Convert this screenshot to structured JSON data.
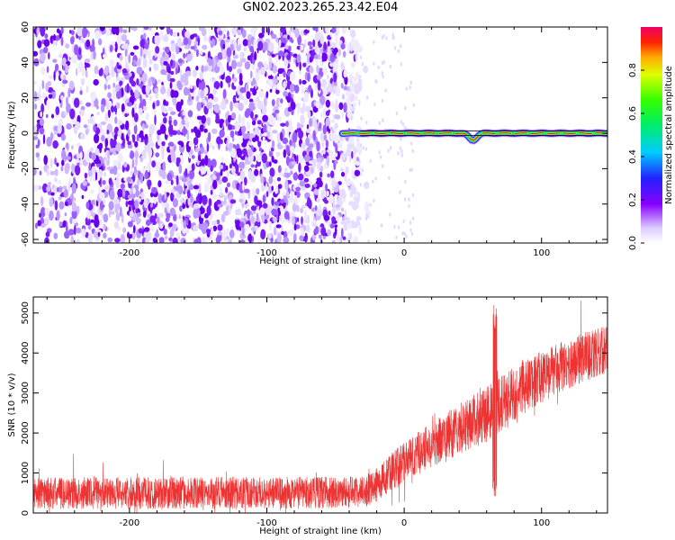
{
  "title": "GN02.2023.265.23.42.E04",
  "chart_data": [
    {
      "type": "heatmap",
      "xlabel": "Height of straight line (km)",
      "ylabel": "Frequency (Hz)",
      "xlim": [
        -270,
        148
      ],
      "ylim": [
        -62,
        60
      ],
      "xticks": [
        -200,
        -100,
        0,
        100
      ],
      "yticks": [
        -60,
        -40,
        -20,
        0,
        20,
        40,
        60
      ],
      "noise_region_x": [
        -270,
        -32
      ],
      "signal_band": {
        "frequency_hz": 0,
        "x_range": [
          -45,
          148
        ],
        "peak_amplitude": 0.9,
        "notch": {
          "x": 50,
          "frequency_hz": -4
        }
      },
      "colorbar": {
        "label": "Normalized spectral amplitude",
        "ticks": [
          0.0,
          0.2,
          0.4,
          0.6,
          0.8
        ],
        "range": [
          0,
          1
        ]
      }
    },
    {
      "type": "line",
      "xlabel": "Height of straight line (km)",
      "ylabel": "SNR (10 * v/v)",
      "xlim": [
        -270,
        148
      ],
      "ylim": [
        0,
        5400
      ],
      "xticks": [
        -200,
        -100,
        0,
        100
      ],
      "yticks": [
        0,
        1000,
        2000,
        3000,
        4000,
        5000
      ],
      "color": "#ee3333",
      "trend": [
        [
          -270,
          500
        ],
        [
          -100,
          500
        ],
        [
          -30,
          520
        ],
        [
          -20,
          700
        ],
        [
          0,
          1300
        ],
        [
          20,
          1700
        ],
        [
          40,
          2100
        ],
        [
          60,
          2450
        ],
        [
          80,
          3000
        ],
        [
          100,
          3400
        ],
        [
          120,
          3750
        ],
        [
          148,
          4100
        ]
      ],
      "spread": [
        [
          -270,
          800
        ],
        [
          -30,
          800
        ],
        [
          0,
          1000
        ],
        [
          60,
          1400
        ],
        [
          148,
          1200
        ]
      ],
      "spike": {
        "x": 66,
        "max": 5350,
        "min": 300
      }
    }
  ]
}
